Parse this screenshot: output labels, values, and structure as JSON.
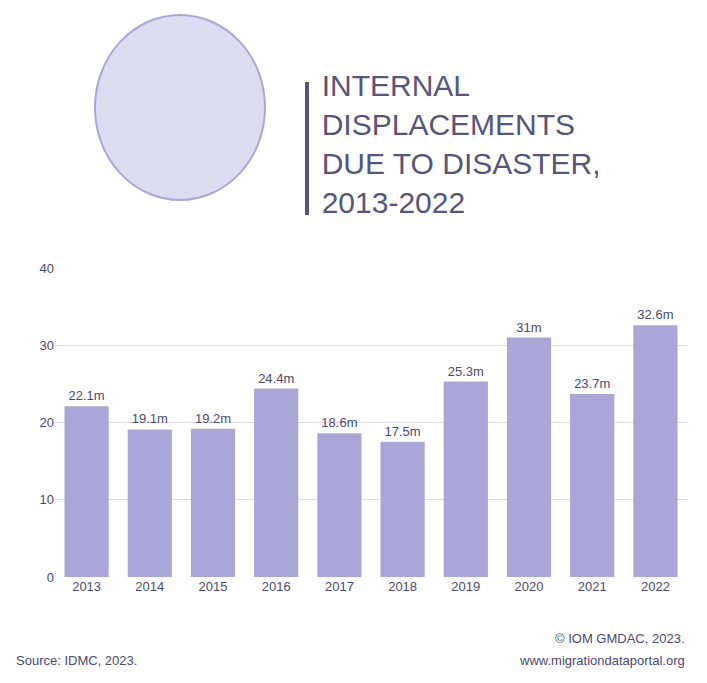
{
  "chart_data": {
    "type": "bar",
    "title": "INTERNAL DISPLACEMENTS DUE TO DISASTER, 2013-2022",
    "categories": [
      "2013",
      "2014",
      "2015",
      "2016",
      "2017",
      "2018",
      "2019",
      "2020",
      "2021",
      "2022"
    ],
    "values": [
      22.1,
      19.1,
      19.2,
      24.4,
      18.6,
      17.5,
      25.3,
      31,
      23.7,
      32.6
    ],
    "value_labels": [
      "22.1m",
      "19.1m",
      "19.2m",
      "24.4m",
      "18.6m",
      "17.5m",
      "25.3m",
      "31m",
      "23.7m",
      "32.6m"
    ],
    "data_labels": true,
    "color": "#aaa7d8",
    "ylim": [
      0,
      40
    ],
    "yticks": [
      0,
      10,
      20,
      30,
      40
    ],
    "grid": true,
    "annotations": [
      "Source: IDMC, 2023.",
      "© IOM GMDAC, 2023.",
      "www.migrationdataportal.org"
    ]
  }
}
